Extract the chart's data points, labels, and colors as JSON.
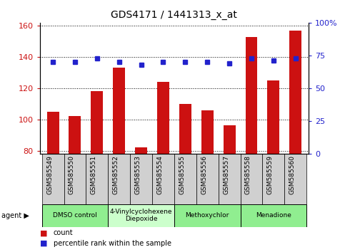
{
  "title": "GDS4171 / 1441313_x_at",
  "samples": [
    "GSM585549",
    "GSM585550",
    "GSM585551",
    "GSM585552",
    "GSM585553",
    "GSM585554",
    "GSM585555",
    "GSM585556",
    "GSM585557",
    "GSM585558",
    "GSM585559",
    "GSM585560"
  ],
  "counts": [
    105,
    102,
    118,
    133,
    82,
    124,
    110,
    106,
    96,
    153,
    125,
    157
  ],
  "percentiles": [
    70,
    70,
    73,
    70,
    68,
    70,
    70,
    70,
    69,
    73,
    71,
    73
  ],
  "ylim_left": [
    78,
    162
  ],
  "ylim_right": [
    0,
    100
  ],
  "yticks_left": [
    80,
    100,
    120,
    140,
    160
  ],
  "yticks_right": [
    0,
    25,
    50,
    75,
    100
  ],
  "bar_color": "#cc1111",
  "dot_color": "#2222cc",
  "grid_color": "#000000",
  "agent_groups": [
    {
      "label": "DMSO control",
      "start": 0,
      "end": 3,
      "color": "#90ee90"
    },
    {
      "label": "4-Vinylcyclohexene\nDiepoxide",
      "start": 3,
      "end": 6,
      "color": "#ccffcc"
    },
    {
      "label": "Methoxychlor",
      "start": 6,
      "end": 9,
      "color": "#90ee90"
    },
    {
      "label": "Menadione",
      "start": 9,
      "end": 12,
      "color": "#90ee90"
    }
  ],
  "legend_count_label": "count",
  "legend_pct_label": "percentile rank within the sample",
  "agent_label": "agent",
  "bar_color_hex": "#cc1111",
  "dot_color_hex": "#2222cc",
  "tick_color_left": "#cc1111",
  "tick_color_right": "#2222cc",
  "sample_box_color": "#d0d0d0",
  "bar_width": 0.55
}
